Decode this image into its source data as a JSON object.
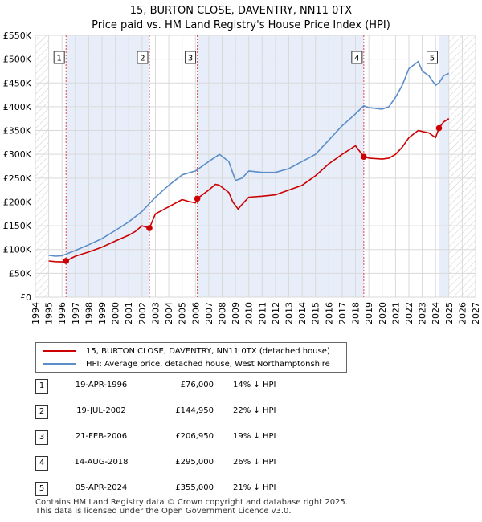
{
  "chart_data": {
    "type": "line",
    "title": "15, BURTON CLOSE, DAVENTRY, NN11 0TX",
    "subtitle": "Price paid vs. HM Land Registry's House Price Index (HPI)",
    "xlim": [
      1994,
      2027
    ],
    "ylim": [
      0,
      550000
    ],
    "x_ticks": [
      "1994",
      "1995",
      "1996",
      "1997",
      "1998",
      "1999",
      "2000",
      "2001",
      "2002",
      "2003",
      "2004",
      "2005",
      "2006",
      "2007",
      "2008",
      "2009",
      "2010",
      "2011",
      "2012",
      "2013",
      "2014",
      "2015",
      "2016",
      "2017",
      "2018",
      "2019",
      "2020",
      "2021",
      "2022",
      "2023",
      "2024",
      "2025",
      "2026",
      "2027"
    ],
    "y_ticks": [
      {
        "value": 0,
        "label": "£0"
      },
      {
        "value": 50000,
        "label": "£50K"
      },
      {
        "value": 100000,
        "label": "£100K"
      },
      {
        "value": 150000,
        "label": "£150K"
      },
      {
        "value": 200000,
        "label": "£200K"
      },
      {
        "value": 250000,
        "label": "£250K"
      },
      {
        "value": 300000,
        "label": "£300K"
      },
      {
        "value": 350000,
        "label": "£350K"
      },
      {
        "value": 400000,
        "label": "£400K"
      },
      {
        "value": 450000,
        "label": "£450K"
      },
      {
        "value": 500000,
        "label": "£500K"
      },
      {
        "value": 550000,
        "label": "£550K"
      }
    ],
    "data_start": 1995.0,
    "data_end": 2025.0,
    "series": [
      {
        "name": "15, BURTON CLOSE, DAVENTRY, NN11 0TX (detached house)",
        "color": "#cc0000",
        "x": [
          1995.0,
          1995.5,
          1996.0,
          1996.3,
          1997.0,
          1998.0,
          1999.0,
          2000.0,
          2001.0,
          2001.5,
          2002.0,
          2002.55,
          2003.0,
          2004.0,
          2005.0,
          2005.5,
          2006.0,
          2006.14,
          2007.0,
          2007.5,
          2007.8,
          2008.5,
          2008.8,
          2009.2,
          2009.5,
          2010.0,
          2011.0,
          2012.0,
          2013.0,
          2014.0,
          2015.0,
          2016.0,
          2017.0,
          2018.0,
          2018.62,
          2019.0,
          2020.0,
          2020.5,
          2021.0,
          2021.5,
          2022.0,
          2022.7,
          2023.0,
          2023.5,
          2024.0,
          2024.26,
          2024.6,
          2025.0
        ],
        "y": [
          76000,
          74500,
          74000,
          76000,
          86000,
          95000,
          105000,
          118000,
          130000,
          138000,
          150000,
          144950,
          175000,
          190000,
          205000,
          201000,
          198000,
          206950,
          225000,
          237000,
          235000,
          220000,
          200000,
          185000,
          195000,
          210000,
          212000,
          215000,
          225000,
          235000,
          255000,
          280000,
          300000,
          318000,
          295000,
          292000,
          290000,
          292000,
          300000,
          315000,
          335000,
          350000,
          348000,
          345000,
          335000,
          355000,
          368000,
          375000
        ]
      },
      {
        "name": "HPI: Average price, detached house, West Northamptonshire",
        "color": "#5b8dc8",
        "x": [
          1995.0,
          1995.5,
          1996.0,
          1997.0,
          1998.0,
          1999.0,
          2000.0,
          2001.0,
          2002.0,
          2003.0,
          2004.0,
          2005.0,
          2006.0,
          2007.0,
          2007.8,
          2008.5,
          2009.0,
          2009.5,
          2010.0,
          2011.0,
          2012.0,
          2013.0,
          2014.0,
          2015.0,
          2016.0,
          2017.0,
          2018.0,
          2018.62,
          2019.0,
          2020.0,
          2020.5,
          2021.0,
          2021.5,
          2022.0,
          2022.7,
          2023.0,
          2023.5,
          2024.0,
          2024.26,
          2024.6,
          2025.0
        ],
        "y": [
          88000,
          86000,
          87000,
          98000,
          110000,
          123000,
          140000,
          158000,
          180000,
          210000,
          235000,
          257000,
          265000,
          285000,
          300000,
          285000,
          245000,
          250000,
          265000,
          262000,
          262000,
          270000,
          285000,
          300000,
          330000,
          360000,
          385000,
          402000,
          398000,
          395000,
          400000,
          420000,
          445000,
          480000,
          495000,
          475000,
          465000,
          445000,
          450000,
          465000,
          470000
        ]
      }
    ],
    "sales": [
      {
        "label": "1",
        "x": 1996.3,
        "y": 76000
      },
      {
        "label": "2",
        "x": 2002.55,
        "y": 144950
      },
      {
        "label": "3",
        "x": 2006.14,
        "y": 206950
      },
      {
        "label": "4",
        "x": 2018.62,
        "y": 295000
      },
      {
        "label": "5",
        "x": 2024.26,
        "y": 355000
      }
    ],
    "legend": [
      {
        "label": "15, BURTON CLOSE, DAVENTRY, NN11 0TX (detached house)",
        "color": "#cc0000"
      },
      {
        "label": "HPI: Average price, detached house, West Northamptonshire",
        "color": "#5b8dc8"
      }
    ]
  },
  "table": [
    {
      "num": "1",
      "date": "19-APR-1996",
      "price": "£76,000",
      "hpi": "14% ↓ HPI"
    },
    {
      "num": "2",
      "date": "19-JUL-2002",
      "price": "£144,950",
      "hpi": "22% ↓ HPI"
    },
    {
      "num": "3",
      "date": "21-FEB-2006",
      "price": "£206,950",
      "hpi": "19% ↓ HPI"
    },
    {
      "num": "4",
      "date": "14-AUG-2018",
      "price": "£295,000",
      "hpi": "26% ↓ HPI"
    },
    {
      "num": "5",
      "date": "05-APR-2024",
      "price": "£355,000",
      "hpi": "21% ↓ HPI"
    }
  ],
  "footer": {
    "line1": "Contains HM Land Registry data © Crown copyright and database right 2025.",
    "line2": "This data is licensed under the Open Government Licence v3.0."
  }
}
